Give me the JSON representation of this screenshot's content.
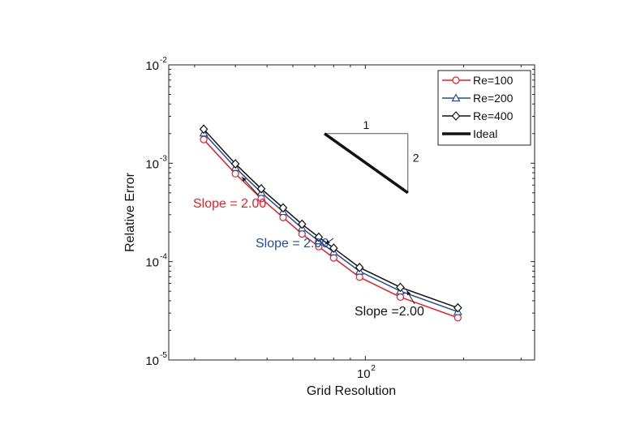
{
  "chart_data": {
    "type": "line",
    "x_scale": "log",
    "y_scale": "log",
    "xlim": [
      25,
      330
    ],
    "ylim": [
      1e-05,
      0.01
    ],
    "xlabel": "Grid Resolution",
    "ylabel": "Relative Error",
    "x_ticks": [
      {
        "value": 100,
        "base": "10",
        "exp": "2"
      }
    ],
    "y_ticks": [
      {
        "value": 0.01,
        "base": "10",
        "exp": "-2"
      },
      {
        "value": 0.001,
        "base": "10",
        "exp": "-3"
      },
      {
        "value": 0.0001,
        "base": "10",
        "exp": "-4"
      },
      {
        "value": 1e-05,
        "base": "10",
        "exp": "-5"
      }
    ],
    "grid": false,
    "legend_position": "top-right",
    "x": [
      32,
      40,
      48,
      56,
      64,
      72,
      80,
      96,
      128,
      192
    ],
    "series": [
      {
        "name": "Re=100",
        "color": "#ee1c25",
        "marker": "circle",
        "values": [
          0.00174,
          0.000782,
          0.000438,
          0.000281,
          0.000191,
          0.000142,
          0.000109,
          6.95e-05,
          4.36e-05,
          2.69e-05
        ]
      },
      {
        "name": "Re=200",
        "color": "#1f4e9e",
        "marker": "triangle",
        "values": [
          0.00202,
          0.000903,
          0.000503,
          0.000322,
          0.000219,
          0.000162,
          0.000125,
          7.97e-05,
          5.01e-05,
          3.09e-05
        ]
      },
      {
        "name": "Re=400",
        "color": "#111111",
        "marker": "diamond",
        "values": [
          0.00222,
          0.000986,
          0.00055,
          0.000352,
          0.00024,
          0.000177,
          0.000137,
          8.71e-05,
          5.48e-05,
          3.39e-05
        ]
      }
    ],
    "ideal": {
      "name": "Ideal",
      "color": "#111111",
      "x": [
        75,
        135
      ],
      "y": [
        0.002,
        0.0005
      ],
      "triangle_labels": {
        "run": "1",
        "rise": "2"
      }
    },
    "annotations": [
      {
        "text": "Slope = 2.00",
        "color": "#ee1c25",
        "arrow_to_series": 0,
        "arrow_index": 1
      },
      {
        "text": "Slope = 2.00",
        "color": "#1f4e9e",
        "arrow_to_series": 1,
        "arrow_index": 5
      },
      {
        "text": "Slope =2.00",
        "color": "#111111",
        "arrow_to_series": 2,
        "arrow_index": 8
      }
    ]
  }
}
